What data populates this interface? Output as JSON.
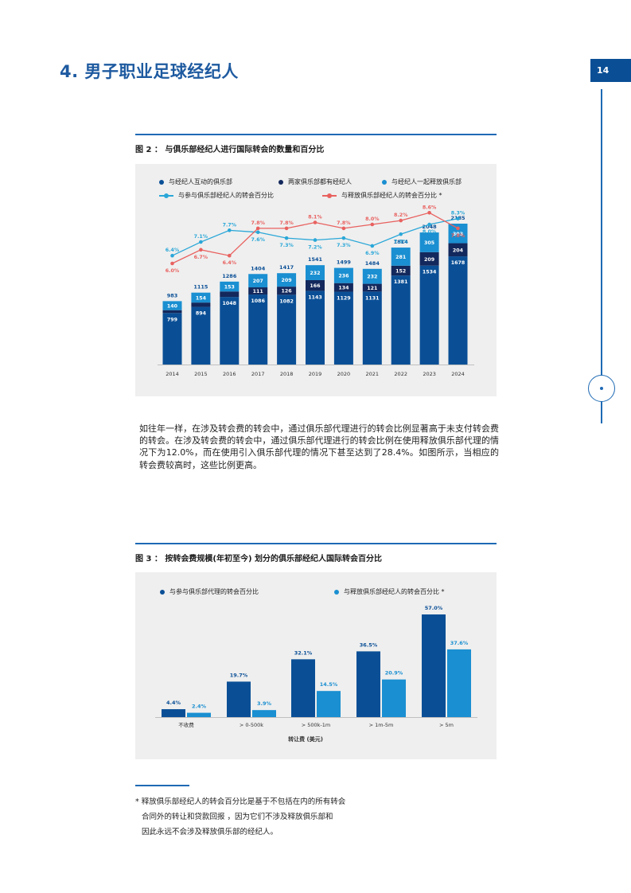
{
  "header": {
    "title": "4. 男子职业足球经纪人",
    "page_number": "14"
  },
  "figure2": {
    "caption": "图 2 ： 与俱乐部经纪人进行国际转会的数量和百分比",
    "legend": {
      "bar1": "与经纪人互动的俱乐部",
      "bar2": "两家俱乐部都有经纪人",
      "bar3": "与经纪人一起释放俱乐部",
      "line1": "与参与俱乐部经纪人的转会百分比",
      "line2": "与释放俱乐部经纪人的转会百分比 *"
    },
    "colors": {
      "bar1": "#0a4f96",
      "bar2": "#13285c",
      "bar3": "#1a8fd1",
      "line1": "#2aa7d8",
      "line2": "#e8615f"
    }
  },
  "figure3": {
    "caption": "图 3 ： 按转会费规模(年初至今) 划分的俱乐部经纪人国际转会百分比",
    "legend": {
      "s1": "与参与俱乐部代理的转会百分比",
      "s2": "与释放俱乐部经纪人的转会百分比 *"
    },
    "xlabel": "转让费 (美元)",
    "colors": {
      "s1": "#0a4f96",
      "s2": "#1a8fd1"
    }
  },
  "body_text": "如往年一样，在涉及转会费的转会中，通过俱乐部代理进行的转会比例显著高于未支付转会费的转会。在涉及转会费的转会中，通过俱乐部代理进行的转会比例在使用释放俱乐部代理的情况下为12.0%，而在使用引入俱乐部代理的情况下甚至达到了28.4%。如图所示，当相应的转会费较高时，这些比例更高。",
  "footnote": {
    "line1": "* 释放俱乐部经纪人的转会百分比是基于不包括在内的所有转会",
    "line2": "合同外的转让和贷款回报 ，因为它们不涉及释放俱乐部和",
    "line3": "因此永远不会涉及释放俱乐部的经纪人。"
  },
  "chart_data": [
    {
      "type": "bar",
      "stacked": true,
      "title": "图 2 ： 与俱乐部经纪人进行国际转会的数量和百分比",
      "categories": [
        "2014",
        "2015",
        "2016",
        "2017",
        "2018",
        "2019",
        "2020",
        "2021",
        "2022",
        "2023",
        "2024"
      ],
      "totals": [
        983,
        1115,
        1286,
        1404,
        1417,
        1541,
        1499,
        1484,
        1814,
        2048,
        2185
      ],
      "series": [
        {
          "name": "与经纪人互动的俱乐部",
          "values": [
            799,
            894,
            1048,
            1086,
            1082,
            1143,
            1129,
            1131,
            1381,
            1534,
            1678
          ]
        },
        {
          "name": "两家俱乐部都有经纪人",
          "values": [
            44,
            67,
            85,
            111,
            126,
            166,
            134,
            121,
            152,
            209,
            204
          ]
        },
        {
          "name": "与经纪人一起释放俱乐部",
          "values": [
            140,
            154,
            153,
            207,
            209,
            232,
            236,
            232,
            281,
            305,
            303
          ]
        }
      ],
      "show_labels": [
        [
          true,
          true,
          true,
          true,
          true,
          true,
          true,
          true,
          true,
          true,
          true
        ],
        [
          false,
          false,
          false,
          true,
          true,
          true,
          true,
          true,
          true,
          true,
          true
        ],
        [
          true,
          true,
          true,
          true,
          true,
          true,
          true,
          true,
          true,
          true,
          true
        ]
      ],
      "lines": [
        {
          "name": "与参与俱乐部经纪人的转会百分比",
          "values": [
            6.4,
            7.1,
            7.7,
            7.6,
            7.3,
            7.2,
            7.3,
            6.9,
            7.5,
            8.0,
            8.3
          ],
          "labels": [
            "6.4%",
            "7.1%",
            "7.7%",
            "7.6%",
            "7.3%",
            "7.2%",
            "7.3%",
            "6.9%",
            "7.5%",
            "8.0%",
            "8.3%"
          ]
        },
        {
          "name": "与释放俱乐部经纪人的转会百分比 *",
          "values": [
            6.0,
            6.7,
            6.4,
            7.8,
            7.8,
            8.1,
            7.8,
            8.0,
            8.2,
            8.6,
            7.8
          ],
          "labels": [
            "6.0%",
            "6.7%",
            "6.4%",
            "7.8%",
            "7.8%",
            "8.1%",
            "7.8%",
            "8.0%",
            "8.2%",
            "8.6%",
            "7.8%"
          ]
        }
      ],
      "ylim": [
        0,
        2300
      ],
      "legend": "top"
    },
    {
      "type": "bar",
      "title": "图 3 ： 按转会费规模(年初至今) 划分的俱乐部经纪人国际转会百分比",
      "xlabel": "转让费 (美元)",
      "categories": [
        "不收费",
        "> 0-500k",
        "> 500k-1m",
        "> 1m-5m",
        "> 5m"
      ],
      "series": [
        {
          "name": "与参与俱乐部代理的转会百分比",
          "values": [
            4.4,
            19.7,
            32.1,
            36.5,
            57.0
          ],
          "labels": [
            "4.4%",
            "19.7%",
            "32.1%",
            "36.5%",
            "57.0%"
          ]
        },
        {
          "name": "与释放俱乐部经纪人的转会百分比 *",
          "values": [
            2.4,
            3.9,
            14.5,
            20.9,
            37.6
          ],
          "labels": [
            "2.4%",
            "3.9%",
            "14.5%",
            "20.9%",
            "37.6%"
          ]
        }
      ],
      "ylim": [
        0,
        60
      ],
      "legend": "top"
    }
  ]
}
